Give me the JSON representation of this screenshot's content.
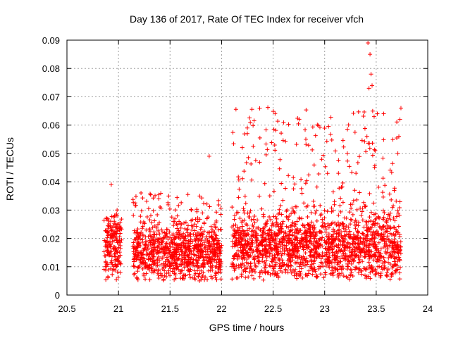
{
  "chart_data": {
    "type": "scatter",
    "title": "Day 136 of 2017, Rate Of TEC Index for receiver vfch",
    "xlabel": "GPS time / hours",
    "ylabel": "ROTI / TECUs",
    "xlim": [
      20.5,
      24
    ],
    "ylim": [
      0,
      0.09
    ],
    "x_ticks": [
      "20.5",
      "21",
      "21.5",
      "22",
      "22.5",
      "23",
      "23.5",
      "24"
    ],
    "y_ticks": [
      "0",
      "0.01",
      "0.02",
      "0.03",
      "0.04",
      "0.05",
      "0.06",
      "0.07",
      "0.08",
      "0.09"
    ],
    "grid": true,
    "marker": "+",
    "color": "#ff0000",
    "segments": [
      {
        "x_start": 20.86,
        "x_end": 21.03,
        "median": 0.017,
        "spread": 0.007,
        "max_outlier": 0.039
      },
      {
        "x_start": 21.14,
        "x_end": 22.0,
        "median": 0.015,
        "spread": 0.006,
        "max_outlier": 0.049
      },
      {
        "x_start": 22.1,
        "x_end": 23.74,
        "median": 0.017,
        "spread": 0.007,
        "max_outlier": 0.089
      }
    ],
    "series": [
      {
        "name": "vfch",
        "notable_points": [
          {
            "x": 20.93,
            "y": 0.039
          },
          {
            "x": 21.88,
            "y": 0.049
          },
          {
            "x": 22.25,
            "y": 0.059
          },
          {
            "x": 22.25,
            "y": 0.057
          },
          {
            "x": 23.22,
            "y": 0.05
          },
          {
            "x": 23.42,
            "y": 0.089
          },
          {
            "x": 23.44,
            "y": 0.085
          },
          {
            "x": 23.45,
            "y": 0.078
          },
          {
            "x": 23.43,
            "y": 0.073
          },
          {
            "x": 23.46,
            "y": 0.074
          },
          {
            "x": 23.48,
            "y": 0.063
          },
          {
            "x": 23.41,
            "y": 0.056
          },
          {
            "x": 23.49,
            "y": 0.051
          },
          {
            "x": 23.74,
            "y": 0.066
          },
          {
            "x": 23.73,
            "y": 0.062
          },
          {
            "x": 23.72,
            "y": 0.056
          },
          {
            "x": 23.71,
            "y": 0.05
          }
        ]
      }
    ]
  }
}
